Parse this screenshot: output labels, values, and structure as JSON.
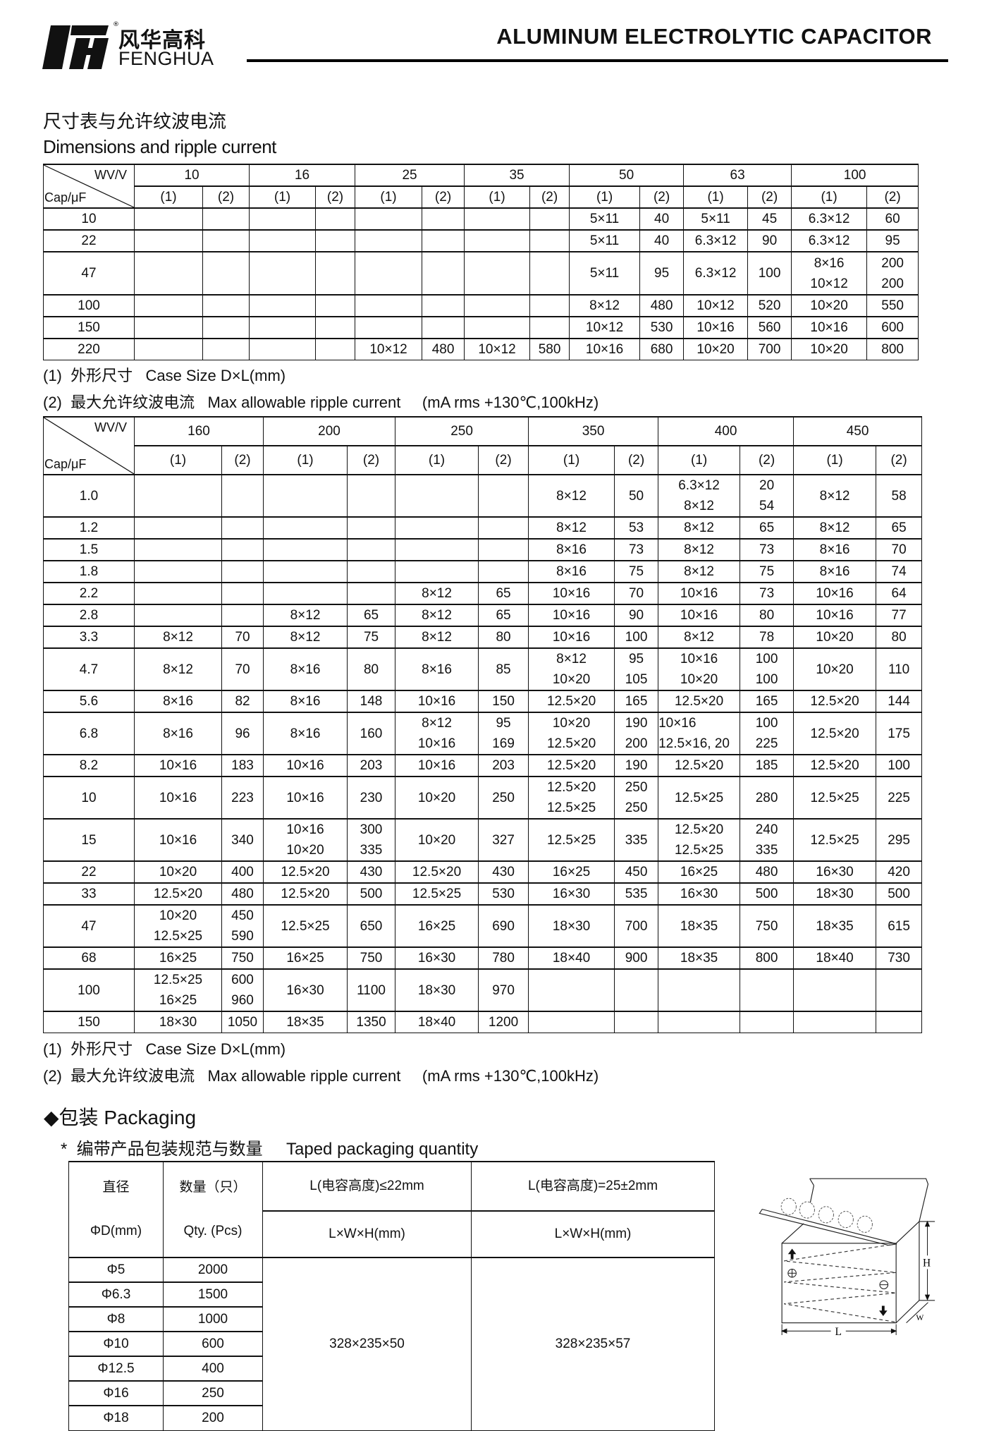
{
  "header": {
    "logo_cn": "风华高科",
    "logo_en": "FENGHUA",
    "title": "ALUMINUM ELECTROLYTIC CAPACITOR"
  },
  "section": {
    "title_cn": "尺寸表与允许纹波电流",
    "title_en": "Dimensions and ripple current"
  },
  "table1": {
    "corner_top": "WV/V",
    "corner_bottom": "Cap/μF",
    "voltages": [
      "10",
      "16",
      "25",
      "35",
      "50",
      "63",
      "100"
    ],
    "sub": [
      "(1)",
      "(2)",
      "(1)",
      "(2)",
      "(1)",
      "(2)",
      "(1)",
      "(2)",
      "(1)",
      "(2)",
      "(1)",
      "(2)",
      "(1)",
      "(2)"
    ],
    "rows": [
      {
        "cap": "10",
        "cells": [
          "",
          "",
          "",
          "",
          "",
          "",
          "",
          "",
          "5×11",
          "40",
          "5×11",
          "45",
          "6.3×12",
          "60"
        ]
      },
      {
        "cap": "22",
        "cells": [
          "",
          "",
          "",
          "",
          "",
          "",
          "",
          "",
          "5×11",
          "40",
          "6.3×12",
          "90",
          "6.3×12",
          "95"
        ]
      },
      {
        "cap": "47",
        "cells": [
          "",
          "",
          "",
          "",
          "",
          "",
          "",
          "",
          "5×11",
          "95",
          "6.3×12",
          "100",
          "8×16\n10×12",
          "200\n200"
        ]
      },
      {
        "cap": "100",
        "cells": [
          "",
          "",
          "",
          "",
          "",
          "",
          "",
          "",
          "8×12",
          "480",
          "10×12",
          "520",
          "10×20",
          "550"
        ]
      },
      {
        "cap": "150",
        "cells": [
          "",
          "",
          "",
          "",
          "",
          "",
          "",
          "",
          "10×12",
          "530",
          "10×16",
          "560",
          "10×16",
          "600"
        ]
      },
      {
        "cap": "220",
        "cells": [
          "",
          "",
          "",
          "",
          "10×12",
          "480",
          "10×12",
          "580",
          "10×16",
          "680",
          "10×20",
          "700",
          "10×20",
          "800"
        ]
      }
    ]
  },
  "notes": {
    "n1": "(1)  外形尺寸   Case Size D×L(mm)",
    "n2": "(2)  最大允许纹波电流   Max allowable ripple current     (mA rms +130℃,100kHz)"
  },
  "table2": {
    "corner_top": "WV/V",
    "corner_bottom": "Cap/μF",
    "voltages": [
      "160",
      "200",
      "250",
      "350",
      "400",
      "450"
    ],
    "sub": [
      "(1)",
      "(2)",
      "(1)",
      "(2)",
      "(1)",
      "(2)",
      "(1)",
      "(2)",
      "(1)",
      "(2)",
      "(1)",
      "(2)"
    ],
    "rows": [
      {
        "cap": "1.0",
        "cells": [
          "",
          "",
          "",
          "",
          "",
          "",
          "8×12",
          "50",
          "6.3×12\n8×12",
          "20\n54",
          "8×12",
          "58"
        ]
      },
      {
        "cap": "1.2",
        "cells": [
          "",
          "",
          "",
          "",
          "",
          "",
          "8×12",
          "53",
          "8×12",
          "65",
          "8×12",
          "65"
        ]
      },
      {
        "cap": "1.5",
        "cells": [
          "",
          "",
          "",
          "",
          "",
          "",
          "8×16",
          "73",
          "8×12",
          "73",
          "8×16",
          "70"
        ]
      },
      {
        "cap": "1.8",
        "cells": [
          "",
          "",
          "",
          "",
          "",
          "",
          "8×16",
          "75",
          "8×12",
          "75",
          "8×16",
          "74"
        ]
      },
      {
        "cap": "2.2",
        "cells": [
          "",
          "",
          "",
          "",
          "8×12",
          "65",
          "10×16",
          "70",
          "10×16",
          "73",
          "10×16",
          "64"
        ]
      },
      {
        "cap": "2.8",
        "cells": [
          "",
          "",
          "8×12",
          "65",
          "8×12",
          "65",
          "10×16",
          "90",
          "10×16",
          "80",
          "10×16",
          "77"
        ]
      },
      {
        "cap": "3.3",
        "cells": [
          "8×12",
          "70",
          "8×12",
          "75",
          "8×12",
          "80",
          "10×16",
          "100",
          "8×12",
          "78",
          "10×20",
          "80"
        ]
      },
      {
        "cap": "4.7",
        "cells": [
          "8×12",
          "70",
          "8×16",
          "80",
          "8×16",
          "85",
          "8×12\n10×20",
          "95\n105",
          "10×16\n10×20",
          "100\n100",
          "10×20",
          "110"
        ]
      },
      {
        "cap": "5.6",
        "cells": [
          "8×16",
          "82",
          "8×16",
          "148",
          "10×16",
          "150",
          "12.5×20",
          "165",
          "12.5×20",
          "165",
          "12.5×20",
          "144"
        ]
      },
      {
        "cap": "6.8",
        "cells": [
          "8×16",
          "96",
          "8×16",
          "160",
          "8×12\n10×16",
          "95\n169",
          "10×20\n12.5×20",
          "190\n200",
          "10×16\n12.5×16, 20",
          "100\n225",
          "12.5×20",
          "175"
        ]
      },
      {
        "cap": "8.2",
        "cells": [
          "10×16",
          "183",
          "10×16",
          "203",
          "10×16",
          "203",
          "12.5×20",
          "190",
          "12.5×20",
          "185",
          "12.5×20",
          "100"
        ]
      },
      {
        "cap": "10",
        "cells": [
          "10×16",
          "223",
          "10×16",
          "230",
          "10×20",
          "250",
          "12.5×20\n12.5×25",
          "250\n250",
          "12.5×25",
          "280",
          "12.5×25",
          "225"
        ]
      },
      {
        "cap": "15",
        "cells": [
          "10×16",
          "340",
          "10×16\n10×20",
          "300\n335",
          "10×20",
          "327",
          "12.5×25",
          "335",
          "12.5×20\n12.5×25",
          "240\n335",
          "12.5×25",
          "295"
        ]
      },
      {
        "cap": "22",
        "cells": [
          "10×20",
          "400",
          "12.5×20",
          "430",
          "12.5×20",
          "430",
          "16×25",
          "450",
          "16×25",
          "480",
          "16×30",
          "420"
        ]
      },
      {
        "cap": "33",
        "cells": [
          "12.5×20",
          "480",
          "12.5×20",
          "500",
          "12.5×25",
          "530",
          "16×30",
          "535",
          "16×30",
          "500",
          "18×30",
          "500"
        ]
      },
      {
        "cap": "47",
        "cells": [
          "10×20\n12.5×25",
          "450\n590",
          "12.5×25",
          "650",
          "16×25",
          "690",
          "18×30",
          "700",
          "18×35",
          "750",
          "18×35",
          "615"
        ]
      },
      {
        "cap": "68",
        "cells": [
          "16×25",
          "750",
          "16×25",
          "750",
          "16×30",
          "780",
          "18×40",
          "900",
          "18×35",
          "800",
          "18×40",
          "730"
        ]
      },
      {
        "cap": "100",
        "cells": [
          "12.5×25\n16×25",
          "600\n960",
          "16×30",
          "1100",
          "18×30",
          "970",
          "",
          "",
          "",
          "",
          "",
          ""
        ]
      },
      {
        "cap": "150",
        "cells": [
          "18×30",
          "1050",
          "18×35",
          "1350",
          "18×40",
          "1200",
          "",
          "",
          "",
          "",
          "",
          ""
        ]
      }
    ]
  },
  "packaging": {
    "title": "◆包装  Packaging",
    "subtitle": "*  编带产品包装规范与数量     Taped packaging quantity",
    "head_diameter_cn": "直径",
    "head_diameter_en": "ΦD(mm)",
    "head_qty_cn": "数量（只）",
    "head_qty_en": "Qty. (Pcs)",
    "head_l1": "L(电容高度)≤22mm",
    "head_l2": "L(电容高度)=25±2mm",
    "head_lwh1": "L×W×H(mm)",
    "head_lwh2": "L×W×H(mm)",
    "box1": "328×235×50",
    "box2": "328×235×57",
    "rows": [
      {
        "d": "Φ5",
        "qty": "2000"
      },
      {
        "d": "Φ6.3",
        "qty": "1500"
      },
      {
        "d": "Φ8",
        "qty": "1000"
      },
      {
        "d": "Φ10",
        "qty": "600"
      },
      {
        "d": "Φ12.5",
        "qty": "400"
      },
      {
        "d": "Φ16",
        "qty": "250"
      },
      {
        "d": "Φ18",
        "qty": "200"
      }
    ],
    "diagram": {
      "label_h": "H",
      "label_l": "L",
      "label_w": "W"
    }
  }
}
